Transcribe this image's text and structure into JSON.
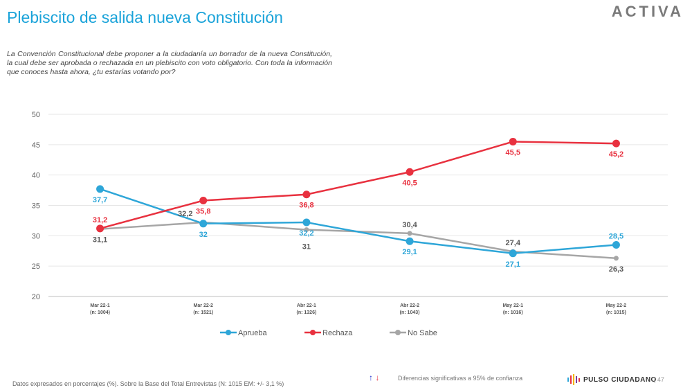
{
  "header": {
    "title": "Plebiscito de salida nueva Constitución",
    "brand": "ACTIVA"
  },
  "question": "La Convención Constitucional debe proponer a la ciudadanía un borrador de la nueva Constitución, la cual debe ser aprobada o rechazada en un plebiscito con voto obligatorio. Con toda la información que conoces hasta ahora, ¿tu estarías votando por?",
  "chart_data": {
    "type": "line",
    "categories": [
      [
        "Mar 22-1",
        "(n: 1004)"
      ],
      [
        "Mar 22-2",
        "(n: 1521)"
      ],
      [
        "Abr 22-1",
        "(n: 1326)"
      ],
      [
        "Abr 22-2",
        "(n: 1043)"
      ],
      [
        "May 22-1",
        "(n: 1016)"
      ],
      [
        "May 22-2",
        "(n: 1015)"
      ]
    ],
    "ylim": [
      20,
      50
    ],
    "yticks": [
      20,
      25,
      30,
      35,
      40,
      45,
      50
    ],
    "grid": true,
    "legend": "bottom",
    "series": [
      {
        "name": "Aprueba",
        "color": "#2ea6d8",
        "values": [
          37.7,
          32,
          32.2,
          29.1,
          27.1,
          28.5
        ],
        "labels": [
          "37,7",
          "32",
          "32,2",
          "29,1",
          "27,1",
          "28,5"
        ],
        "label_pos": [
          "below",
          "below",
          "below",
          "below",
          "below",
          "above"
        ]
      },
      {
        "name": "Rechaza",
        "color": "#e8313f",
        "values": [
          31.2,
          35.8,
          36.8,
          40.5,
          45.5,
          45.2
        ],
        "labels": [
          "31,2",
          "35,8",
          "36,8",
          "40,5",
          "45,5",
          "45,2"
        ],
        "label_pos": [
          "above",
          "below",
          "below",
          "below",
          "below",
          "below"
        ]
      },
      {
        "name": "No Sabe",
        "color": "#a6a6a6",
        "values": [
          31.1,
          32.2,
          31,
          30.4,
          27.4,
          26.3
        ],
        "labels": [
          "31,1",
          "32,2",
          "31",
          "30,4",
          "27,4",
          "26,3"
        ],
        "label_pos": [
          "below",
          "above",
          "below",
          "above",
          "above",
          "below"
        ]
      }
    ]
  },
  "footer": {
    "note": "Datos expresados en porcentajes (%). Sobre la Base del Total Entrevistas (N: 1015  EM: +/- 3,1 %)",
    "arrow_up": "↑",
    "arrow_down": "↓",
    "significance": "Diferencias  significativas a 95% de confianza",
    "logo": "PULSO CIUDADANO",
    "page": "|  47"
  }
}
